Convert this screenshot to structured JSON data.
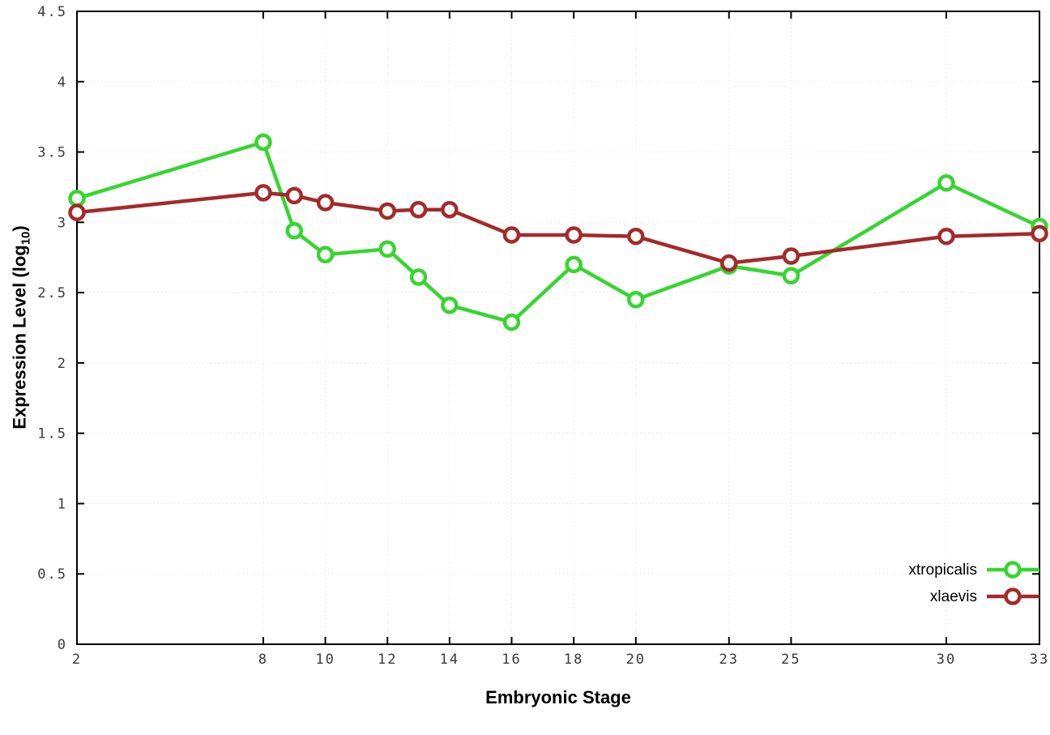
{
  "chart_data": {
    "type": "line",
    "x": [
      2,
      8,
      9,
      10,
      12,
      13,
      14,
      16,
      18,
      20,
      23,
      25,
      30,
      33
    ],
    "series": [
      {
        "name": "xtropicalis",
        "color": "#35d62f",
        "values": [
          3.17,
          3.57,
          2.94,
          2.77,
          2.81,
          2.61,
          2.41,
          2.29,
          2.7,
          2.45,
          2.69,
          2.62,
          3.28,
          2.97
        ]
      },
      {
        "name": "xlaevis",
        "color": "#a42a2a",
        "values": [
          3.07,
          3.21,
          3.19,
          3.14,
          3.08,
          3.09,
          3.09,
          2.91,
          2.91,
          2.9,
          2.71,
          2.76,
          2.9,
          2.92
        ]
      }
    ],
    "xlabel": "Embryonic Stage",
    "ylabel": {
      "main": "Expression Level (log",
      "sub": "10",
      "end": ")"
    },
    "xlim": [
      2,
      33
    ],
    "ylim": [
      0,
      4.5
    ],
    "xticks": [
      2,
      8,
      10,
      12,
      14,
      16,
      18,
      20,
      23,
      25,
      30,
      33
    ],
    "yticks": [
      0,
      0.5,
      1,
      1.5,
      2,
      2.5,
      3,
      3.5,
      4,
      4.5
    ],
    "ytick_labels": [
      "0",
      "0.5",
      "1",
      "1.5",
      "2",
      "2.5",
      "3",
      "3.5",
      "4",
      "4.5"
    ],
    "grid": true,
    "legend_position": "bottom-right",
    "axis_color": "#000000",
    "tick_label_color": "#3a3a3a",
    "grid_color": "#e0e0e0"
  }
}
